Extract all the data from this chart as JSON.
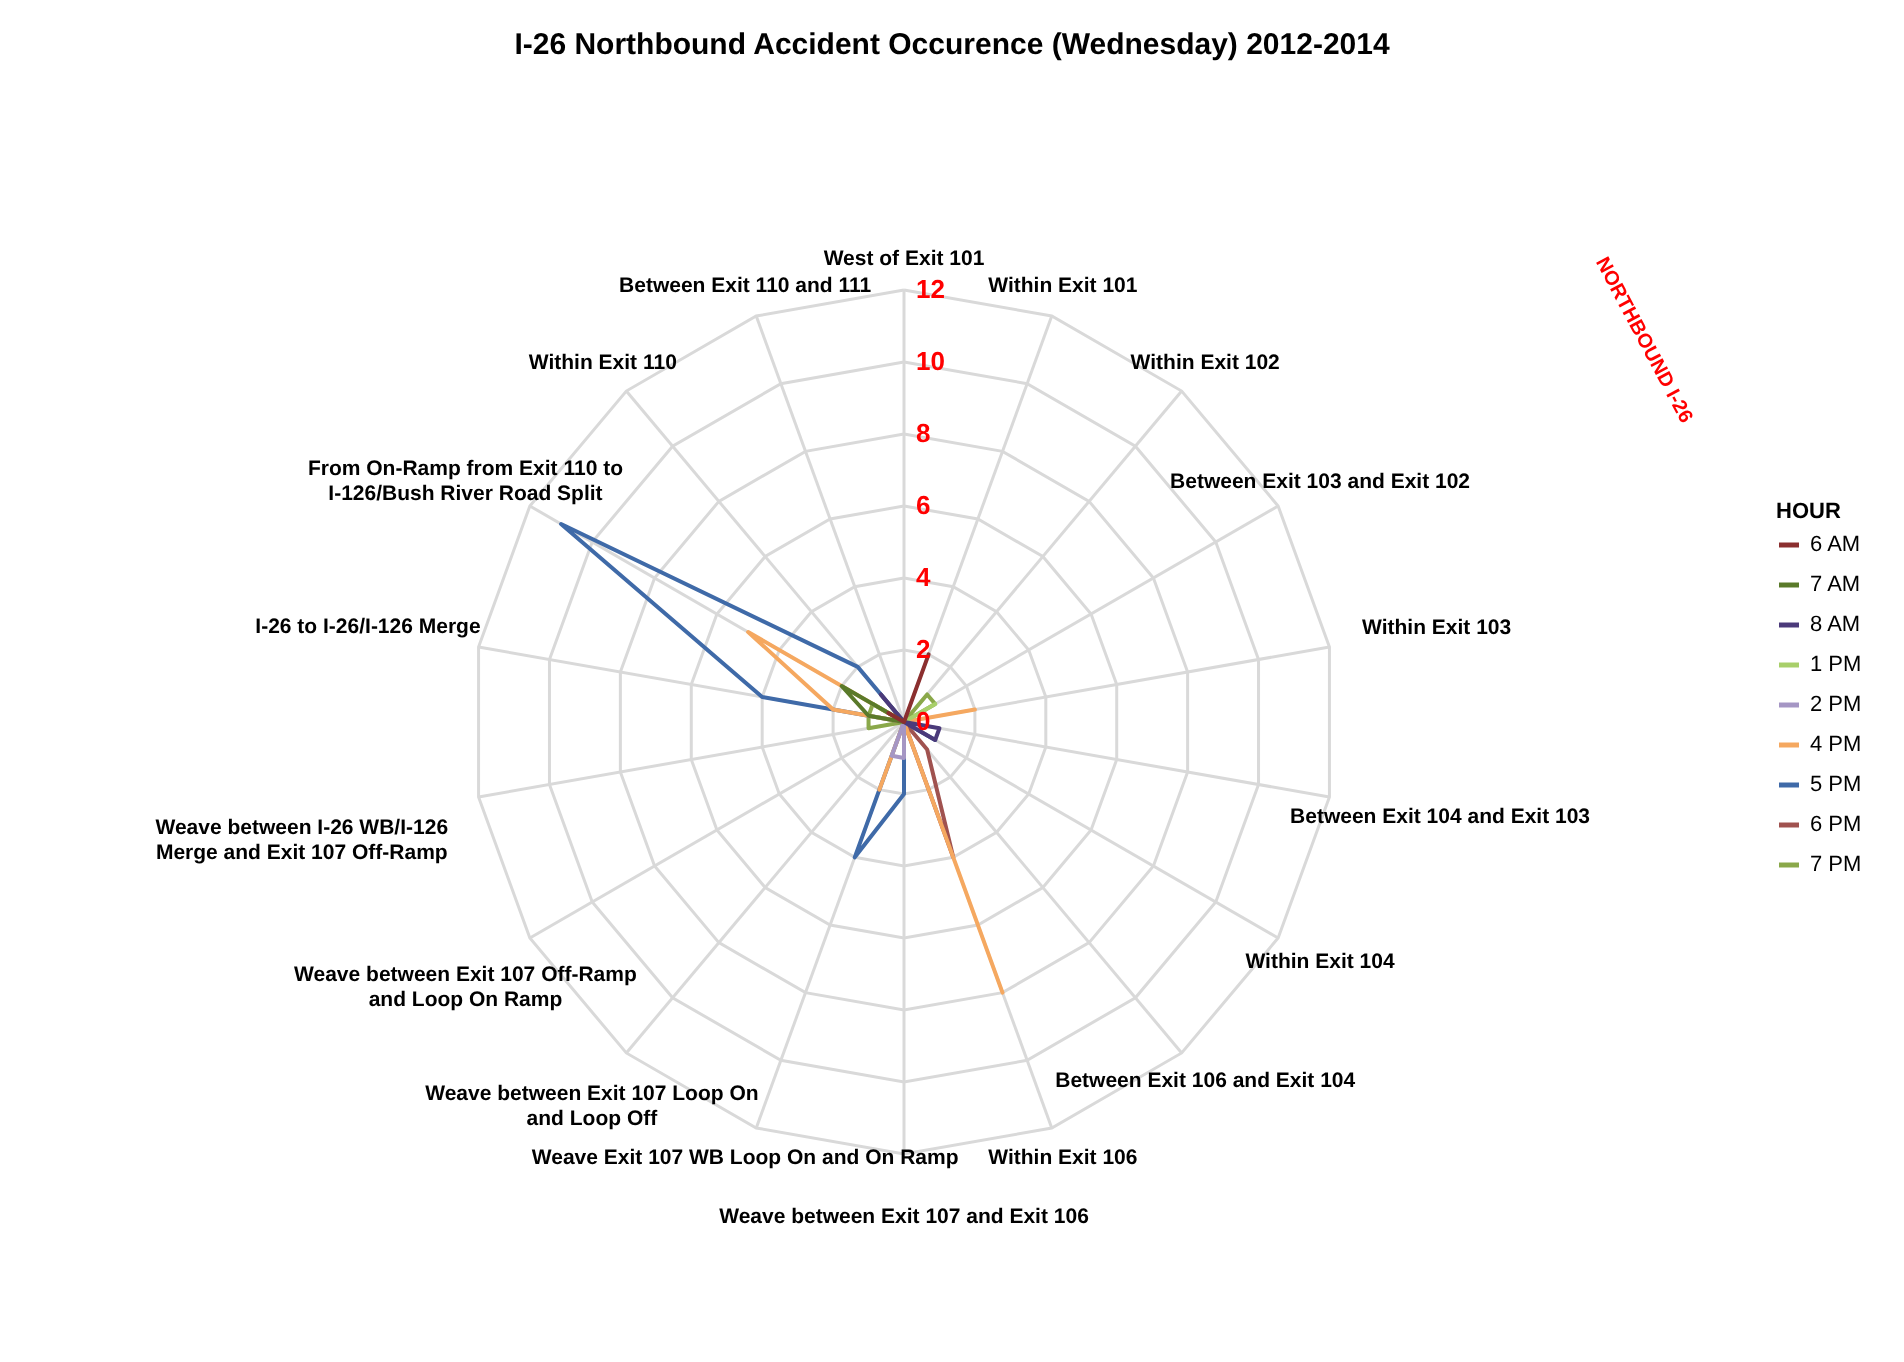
{
  "chart_data": {
    "type": "radar",
    "title": "I-26 Northbound Accident Occurence (Wednesday) 2012-2014",
    "categories": [
      "West of Exit 101",
      "Within Exit 101",
      "Within Exit 102",
      "Between Exit 103 and Exit 102",
      "Within Exit 103",
      "Between Exit 104 and Exit 103",
      "Within Exit 104",
      "Between Exit 106 and Exit 104",
      "Within Exit 106",
      "Weave between Exit 107 and Exit 106",
      "Weave Exit 107 WB Loop On and On Ramp",
      "Weave between Exit 107 Loop On and Loop Off",
      "Weave between Exit 107 Off-Ramp and Loop On Ramp",
      "Weave between I-26 WB/I-126 Merge and Exit 107 Off-Ramp",
      "I-26 to I-26/I-126 Merge",
      "From On-Ramp from Exit 110 to I-126/Bush River Road Split",
      "Within Exit 110",
      "Between Exit 110 and 111"
    ],
    "series": [
      {
        "name": "6 AM",
        "color": "#8b2f2f",
        "values": [
          0,
          2,
          0,
          0,
          0,
          0,
          0,
          0,
          0,
          0,
          0,
          0,
          0,
          0,
          0,
          0.5,
          0,
          0
        ]
      },
      {
        "name": "7 AM",
        "color": "#5a7a2a",
        "values": [
          0,
          0,
          0,
          0,
          0,
          0,
          0,
          0,
          0,
          0,
          0,
          0,
          0,
          0,
          1,
          2,
          0,
          0
        ]
      },
      {
        "name": "8 AM",
        "color": "#4b3a7a",
        "values": [
          0,
          0,
          0,
          0,
          0,
          1,
          1,
          0,
          0,
          0,
          0,
          0,
          0,
          0,
          0,
          0,
          1,
          0
        ]
      },
      {
        "name": "1 PM",
        "color": "#a8cf6a",
        "values": [
          0,
          0,
          0,
          1,
          0,
          0,
          0,
          0,
          0,
          0,
          0,
          0,
          0,
          0,
          0,
          1,
          0,
          0
        ]
      },
      {
        "name": "2 PM",
        "color": "#a596c4",
        "values": [
          0,
          0,
          0,
          0,
          0,
          0,
          0,
          0,
          0,
          1,
          1,
          0,
          0,
          0,
          0,
          0,
          0,
          0
        ]
      },
      {
        "name": "4 PM",
        "color": "#f5a860",
        "values": [
          0,
          0,
          0,
          0,
          2,
          0,
          0,
          0,
          8,
          0,
          2,
          0,
          0,
          0,
          2,
          5,
          0,
          0
        ]
      },
      {
        "name": "5 PM",
        "color": "#3f6aa8",
        "values": [
          0,
          0,
          0,
          0,
          0,
          0,
          1,
          0,
          0,
          2,
          4,
          0,
          0,
          0,
          4,
          11,
          2,
          0
        ]
      },
      {
        "name": "6 PM",
        "color": "#a0524f",
        "values": [
          0,
          0,
          0,
          0,
          0,
          0,
          0,
          1,
          4,
          0,
          0,
          0,
          0,
          0,
          0,
          0,
          1,
          0
        ]
      },
      {
        "name": "7 PM",
        "color": "#8aa84a",
        "values": [
          0,
          0,
          1,
          1,
          0,
          0,
          0,
          0,
          0,
          0,
          0,
          0,
          0,
          1,
          1,
          1,
          0,
          0
        ]
      }
    ],
    "ylim": [
      0,
      12
    ],
    "yticks": [
      0,
      2,
      4,
      6,
      8,
      10,
      12
    ],
    "grid": true,
    "legend": "right",
    "legend_title": "HOUR",
    "annotations": [
      "NORTHBOUND I-26"
    ]
  }
}
